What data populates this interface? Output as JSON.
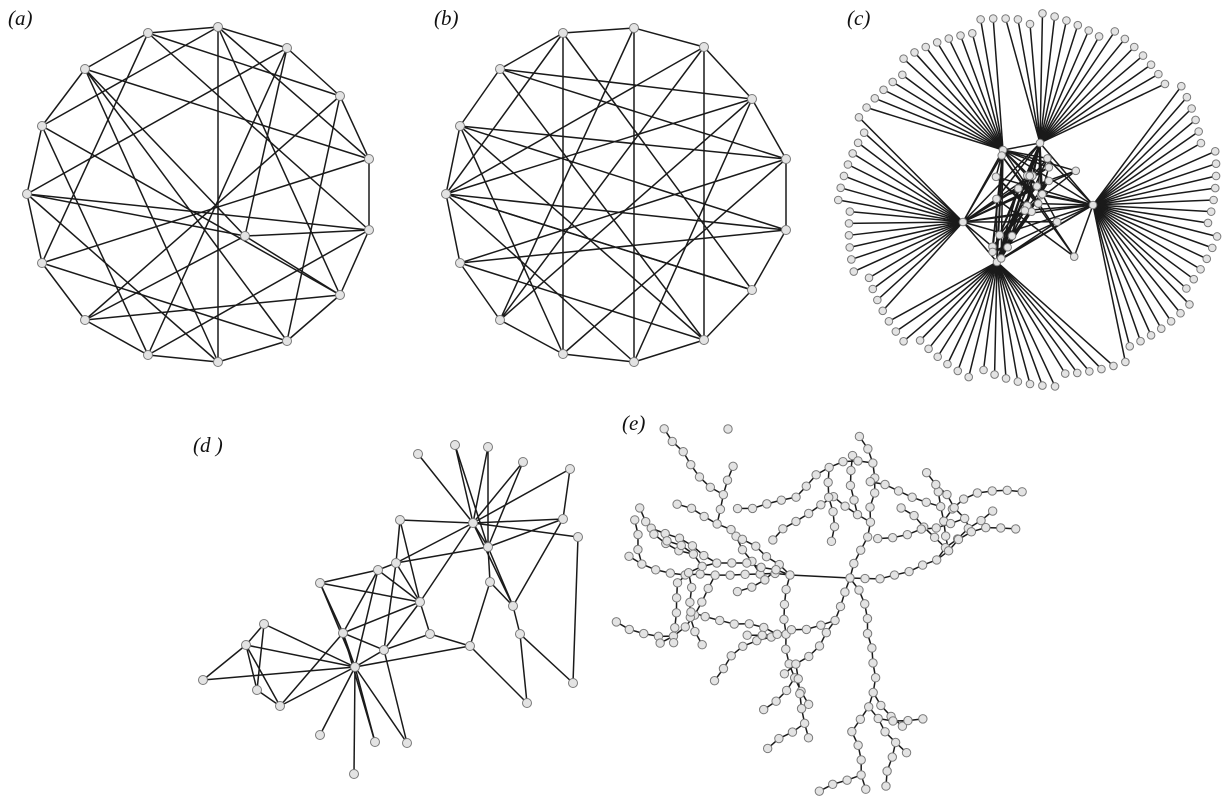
{
  "figure": {
    "panels": [
      {
        "id": "a",
        "label": "(a)",
        "kind": "random-circular"
      },
      {
        "id": "b",
        "label": "(b)",
        "kind": "random-circular"
      },
      {
        "id": "c",
        "label": "(c)",
        "kind": "hub-dominated"
      },
      {
        "id": "d",
        "label": "(d )",
        "kind": "community"
      },
      {
        "id": "e",
        "label": "(e)",
        "kind": "tree-like"
      }
    ],
    "colors": {
      "edge": "#1a1a1a",
      "node_fill": "#e3e3e3",
      "node_stroke": "#7a7a7a",
      "background": "#ffffff"
    }
  }
}
